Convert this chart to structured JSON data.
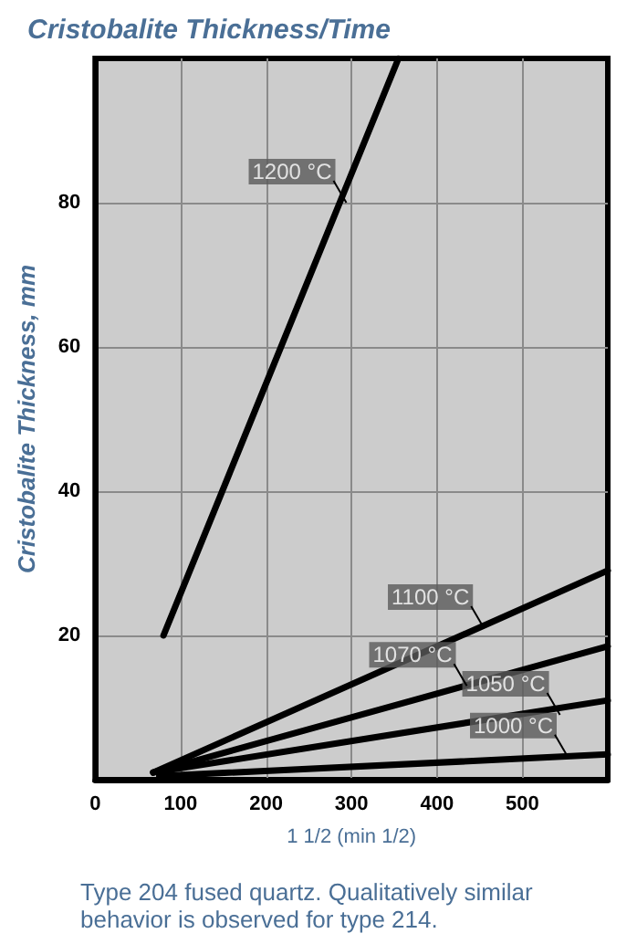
{
  "chart_data": {
    "type": "line",
    "title": "Cristobalite Thickness/Time",
    "xlabel": "1 1/2 (min 1/2)",
    "ylabel": "Cristobalite Thickness, mm",
    "xlim": [
      0,
      600
    ],
    "xticks": [
      0,
      100,
      200,
      300,
      400,
      500
    ],
    "ylim": [
      0,
      100
    ],
    "yticks": [
      20,
      40,
      60,
      80
    ],
    "grid": true,
    "marker": "none",
    "line_style": "solid",
    "series": [
      {
        "color": "#000000",
        "x": [
          80,
          355
        ],
        "values": [
          20,
          100
        ]
      },
      {
        "color": "#000000",
        "x": [
          68,
          600
        ],
        "values": [
          1,
          29
        ]
      },
      {
        "color": "#000000",
        "x": [
          68,
          600
        ],
        "values": [
          1,
          18.5
        ]
      },
      {
        "color": "#000000",
        "x": [
          68,
          600
        ],
        "values": [
          1,
          11
        ]
      },
      {
        "color": "#000000",
        "x": [
          75,
          600
        ],
        "values": [
          0.5,
          3.5
        ]
      }
    ],
    "annotations": [
      {
        "text": "1200 °C",
        "x": 294,
        "y": 80
      },
      {
        "text": "1100 °C",
        "x": 455,
        "y": 21
      },
      {
        "text": "1070 °C",
        "x": 435,
        "y": 13
      },
      {
        "text": "1050 °C",
        "x": 544,
        "y": 9
      },
      {
        "text": "1000 °C",
        "x": 553,
        "y": 3.2
      },
      "Type 204 fused quartz. Qualitatively similar behavior is observed for type 214."
    ]
  }
}
